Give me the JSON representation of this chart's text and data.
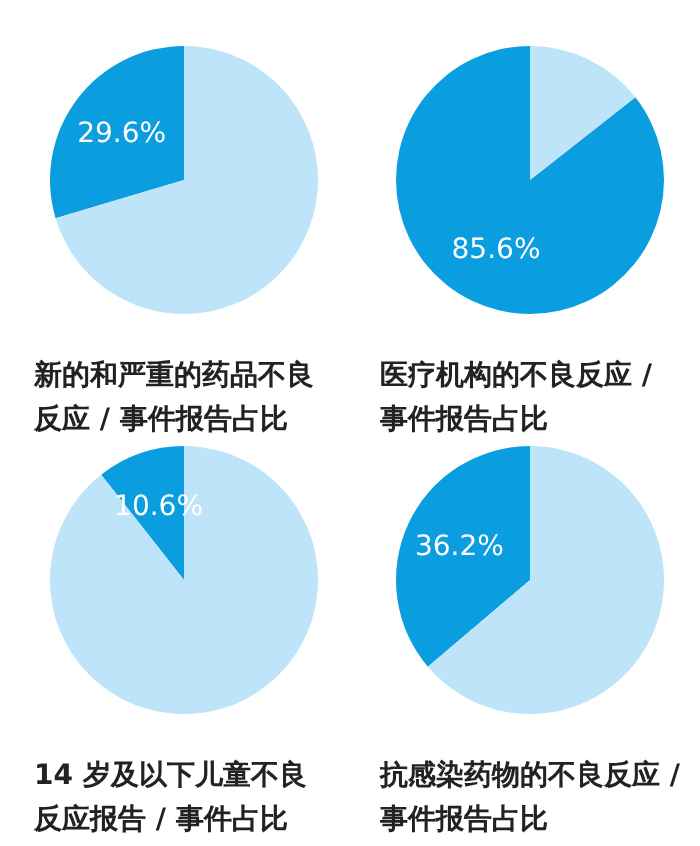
{
  "chart_data": [
    {
      "type": "pie",
      "title": "新的和严重的药品不良反应 / 事件报告占比",
      "categories": [
        null,
        null
      ],
      "values": [
        29.6,
        70.4
      ],
      "colors": [
        "#0a9de0",
        "#bde4f8"
      ],
      "value_labels": [
        "29.6%",
        null
      ]
    },
    {
      "type": "pie",
      "title": "医疗机构的不良反应 / 事件报告占比",
      "categories": [
        null,
        null
      ],
      "values": [
        85.6,
        14.4
      ],
      "colors": [
        "#0a9de0",
        "#bde4f8"
      ],
      "value_labels": [
        "85.6%",
        null
      ]
    },
    {
      "type": "pie",
      "title": "14 岁及以下儿童不良反应报告 / 事件占比",
      "categories": [
        null,
        null
      ],
      "values": [
        10.6,
        89.4
      ],
      "colors": [
        "#0a9de0",
        "#bde4f8"
      ],
      "value_labels": [
        "10.6%",
        null
      ]
    },
    {
      "type": "pie",
      "title": "抗感染药物的不良反应 / 事件报告占比",
      "categories": [
        null,
        null
      ],
      "values": [
        36.2,
        63.8
      ],
      "colors": [
        "#0a9de0",
        "#bde4f8"
      ],
      "value_labels": [
        "36.2%",
        null
      ]
    }
  ]
}
